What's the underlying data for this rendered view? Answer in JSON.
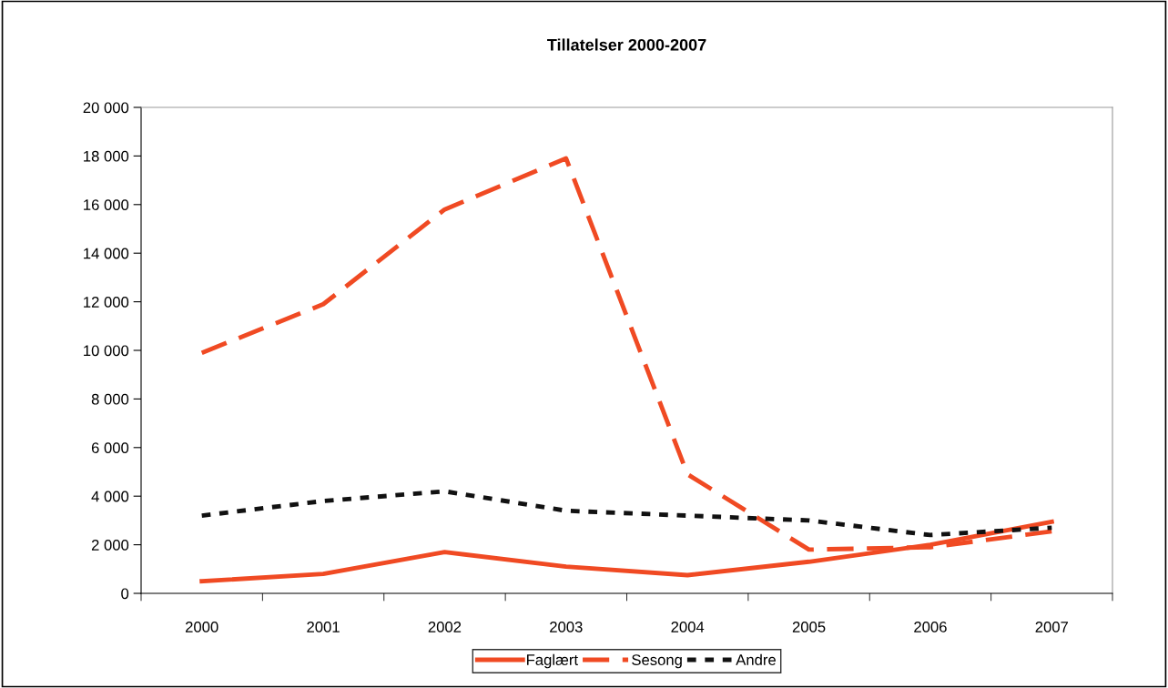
{
  "chart_data": {
    "type": "line",
    "title": "Tillatelser 2000-2007",
    "categories": [
      "2000",
      "2001",
      "2002",
      "2003",
      "2004",
      "2005",
      "2006",
      "2007"
    ],
    "series": [
      {
        "name": "Faglært",
        "color": "#f04a23",
        "line_style": "solid",
        "values": [
          500,
          800,
          1700,
          1100,
          750,
          1300,
          2000,
          2950
        ]
      },
      {
        "name": "Sesong",
        "color": "#f04a23",
        "line_style": "dashed",
        "values": [
          9900,
          11900,
          15800,
          17900,
          4900,
          1800,
          1900,
          2550
        ]
      },
      {
        "name": "Andre",
        "color": "#111111",
        "line_style": "dotted",
        "values": [
          3200,
          3800,
          4200,
          3400,
          3200,
          3000,
          2400,
          2700
        ]
      }
    ],
    "ylim": [
      0,
      20000
    ],
    "yticks": [
      0,
      {
        "value": 2000,
        "label": "2 000"
      },
      {
        "value": 4000,
        "label": "4 000"
      },
      {
        "value": 6000,
        "label": "6 000"
      },
      {
        "value": 8000,
        "label": "8 000"
      },
      {
        "value": 10000,
        "label": "10 000"
      },
      {
        "value": 12000,
        "label": "12 000"
      },
      {
        "value": 14000,
        "label": "14 000"
      },
      {
        "value": 16000,
        "label": "16 000"
      },
      {
        "value": 18000,
        "label": "18 000"
      },
      {
        "value": 20000,
        "label": "20 000"
      }
    ],
    "grid": false,
    "legend": "bottom",
    "marker": "none"
  }
}
